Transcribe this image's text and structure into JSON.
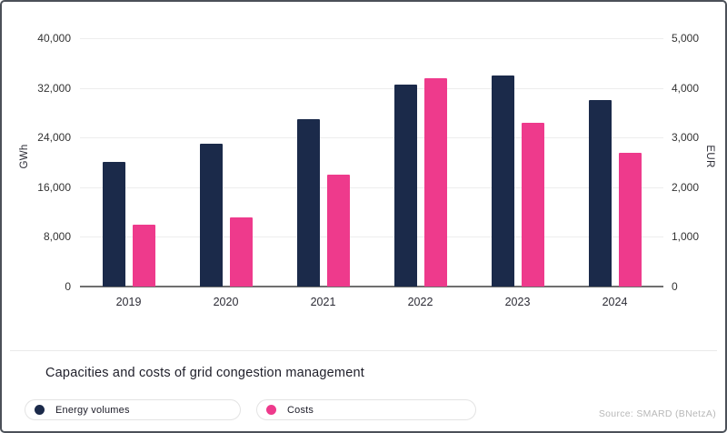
{
  "card": {
    "title": "Capacities and costs of grid congestion management",
    "source": "Source: SMARD (BNetzA)"
  },
  "chart_data": {
    "type": "bar",
    "categories": [
      "2019",
      "2020",
      "2021",
      "2022",
      "2023",
      "2024"
    ],
    "series": [
      {
        "name": "Energy volumes",
        "axis": "left",
        "unit": "GWh",
        "color": "#1b2a4a",
        "values": [
          20000,
          23000,
          27000,
          32500,
          34000,
          30000
        ]
      },
      {
        "name": "Costs",
        "axis": "right",
        "unit": "EUR",
        "color": "#ee3a8c",
        "values": [
          1250,
          1400,
          2250,
          4200,
          3300,
          2700
        ]
      }
    ],
    "title": "Capacities and costs of grid congestion management",
    "left_axis": {
      "label": "GWh",
      "min": 0,
      "max": 40000,
      "ticks": [
        "40,000",
        "32,000",
        "24,000",
        "16,000",
        "8,000",
        "0"
      ]
    },
    "right_axis": {
      "label": "EUR",
      "min": 0,
      "max": 5000,
      "ticks": [
        "5,000",
        "4,000",
        "3,000",
        "2,000",
        "1,000",
        "0"
      ]
    },
    "grid": true,
    "legend_position": "bottom"
  },
  "legend": {
    "items": [
      {
        "label": "Energy volumes",
        "color": "#1b2a4a"
      },
      {
        "label": "Costs",
        "color": "#ee3a8c"
      }
    ]
  },
  "colors": {
    "navy": "#1b2a4a",
    "pink": "#ee3a8c",
    "gridline": "#ededed",
    "axis_line": "#6f6f6f",
    "card_border": "#4b5058",
    "divider": "#eaeaea",
    "source_text": "#b8b8b8",
    "tick_text": "#333333"
  }
}
